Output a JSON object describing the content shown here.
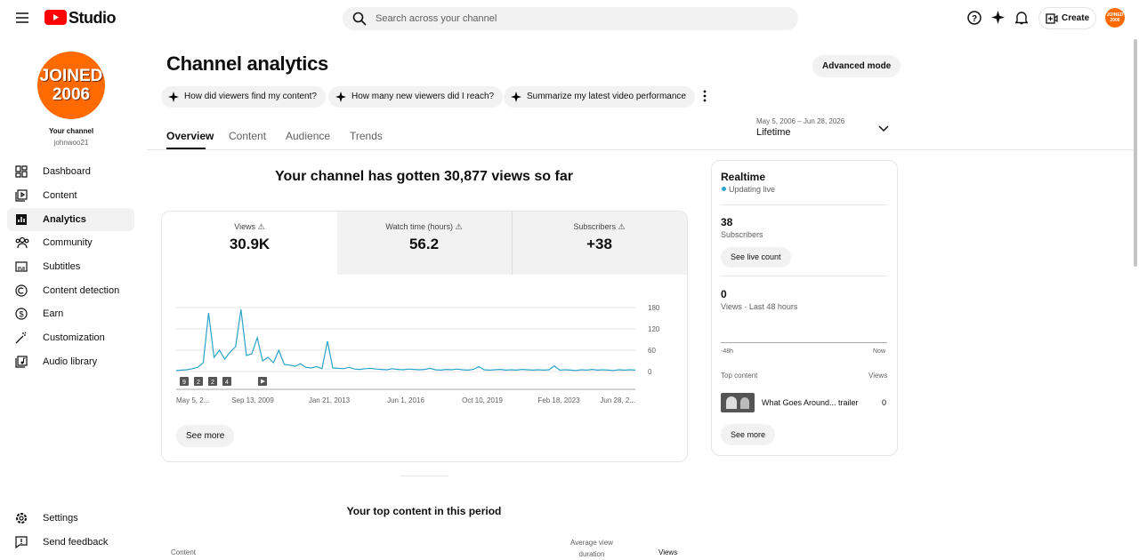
{
  "header": {
    "logo": "Studio",
    "search_placeholder": "Search across your channel",
    "create": "Create",
    "avatar_small": "JOINED 2006"
  },
  "sidebar": {
    "avatar": [
      "JOINED",
      "2006"
    ],
    "your_channel": "Your channel",
    "handle": "johnwoo21",
    "nav": [
      "Dashboard",
      "Content",
      "Analytics",
      "Community",
      "Subtitles",
      "Content detection",
      "Earn",
      "Customization",
      "Audio library"
    ],
    "footer": [
      "Settings",
      "Send feedback"
    ]
  },
  "analytics": {
    "title": "Channel analytics",
    "advanced_mode": "Advanced mode",
    "prompts": [
      "How did viewers find my content?",
      "How many new viewers did I reach?",
      "Summarize my latest video performance"
    ],
    "tabs": [
      "Overview",
      "Content",
      "Audience",
      "Trends"
    ],
    "date_range": "May 5, 2006 – Jun 28, 2026",
    "period": "Lifetime"
  },
  "overview": {
    "headline": "Your channel has gotten 30,877 views so far",
    "metrics": [
      {
        "label": "Views",
        "value": "30.9K"
      },
      {
        "label": "Watch time (hours)",
        "value": "56.2"
      },
      {
        "label": "Subscribers",
        "value": "+38"
      }
    ],
    "see_more": "See more"
  },
  "chart_data": {
    "type": "line",
    "color": "#2ba3c9",
    "ylim": [
      0,
      180
    ],
    "yticks": [
      0,
      60,
      120,
      180
    ],
    "x_labels": [
      "May 5, 2...",
      "Sep 13, 2009",
      "Jan 21, 2013",
      "Jun 1, 2016",
      "Oct 10, 2019",
      "Feb 18, 2023",
      "Jun 28, 2..."
    ],
    "annotations": [
      "9",
      "2",
      "2",
      "4"
    ],
    "values": [
      3,
      4,
      5,
      8,
      12,
      25,
      165,
      40,
      60,
      35,
      55,
      70,
      175,
      45,
      50,
      95,
      30,
      40,
      25,
      60,
      20,
      18,
      15,
      22,
      12,
      10,
      14,
      8,
      85,
      10,
      9,
      8,
      12,
      7,
      6,
      8,
      9,
      7,
      6,
      5,
      8,
      6,
      5,
      7,
      6,
      5,
      6,
      9,
      5,
      4,
      6,
      5,
      7,
      5,
      4,
      6,
      14,
      5,
      4,
      5,
      6,
      4,
      5,
      4,
      6,
      5,
      4,
      5,
      4,
      5,
      16,
      4,
      5,
      4,
      3,
      5,
      4,
      6,
      4,
      5,
      4,
      3,
      5,
      4,
      5,
      4
    ]
  },
  "realtime": {
    "title": "Realtime",
    "status": "Updating live",
    "subscribers_value": "38",
    "subscribers_label": "Subscribers",
    "see_live_count": "See live count",
    "views_value": "0",
    "views_label": "Views · Last 48 hours",
    "axis_start": "-48h",
    "axis_end": "Now",
    "top_content": "Top content",
    "views_header": "Views",
    "item_title": "What Goes Around... trailer",
    "item_views": "0",
    "see_more": "See more"
  },
  "top_content": {
    "title": "Your top content in this period",
    "columns": [
      "Content",
      "Average view duration",
      "Views"
    ]
  }
}
